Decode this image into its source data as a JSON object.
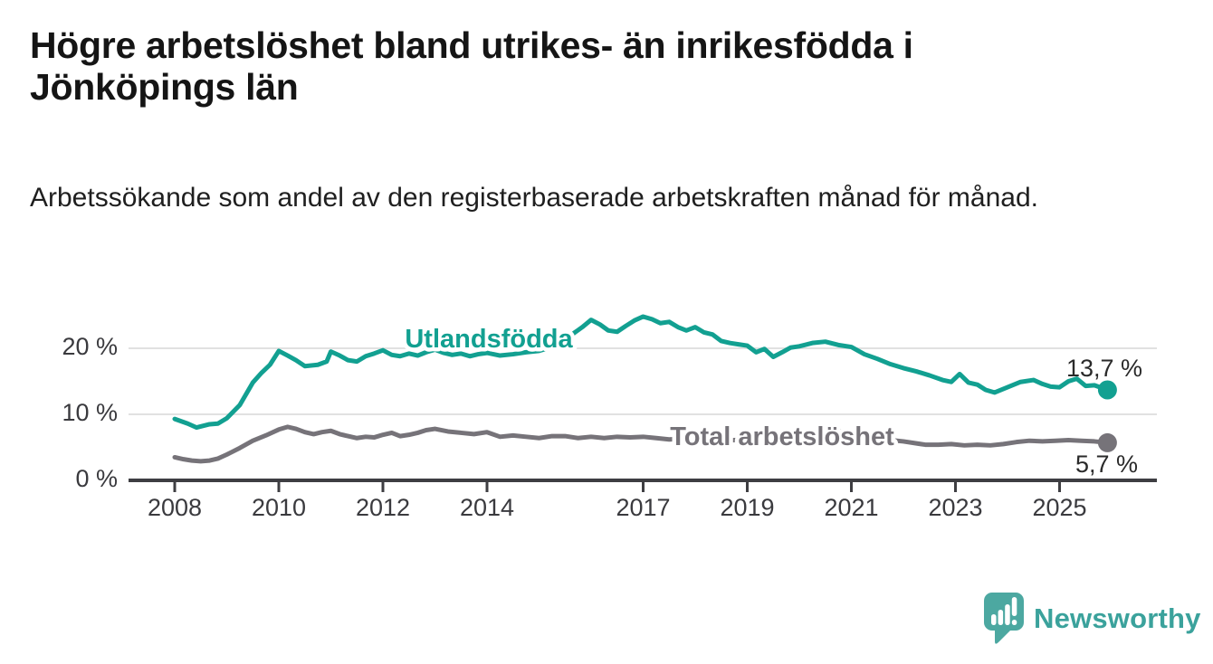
{
  "header": {
    "title": "Högre arbetslöshet bland utrikes- än inrikesfödda i Jönköpings län",
    "subtitle": "Arbetssökande som andel av den registerbaserade arbetskraften månad för månad."
  },
  "chart_data": {
    "type": "line",
    "title": "Högre arbetslöshet bland utrikes- än inrikesfödda i Jönköpings län",
    "subtitle": "Arbetssökande som andel av den registerbaserade arbetskraften månad för månad.",
    "x_unit": "decimal_year",
    "xlim": [
      2007.1,
      2026.9
    ],
    "ylim": [
      0,
      28.9
    ],
    "grid": "horizontal",
    "legend_position": "inline-labels",
    "x_ticks": [
      2008,
      2010,
      2012,
      2014,
      2017,
      2019,
      2021,
      2023,
      2025
    ],
    "y_ticks": [
      {
        "value": 0,
        "label": "0 %"
      },
      {
        "value": 10,
        "label": "10 %"
      },
      {
        "value": 20,
        "label": "20 %"
      }
    ],
    "series": [
      {
        "name": "Utlandsfödda",
        "color": "#12A091",
        "end_label": "13,7 %",
        "end_value": 13.7,
        "x": [
          2008.0,
          2008.25,
          2008.42,
          2008.67,
          2008.83,
          2009.0,
          2009.25,
          2009.5,
          2009.67,
          2009.83,
          2010.0,
          2010.17,
          2010.33,
          2010.5,
          2010.75,
          2010.92,
          2011.0,
          2011.17,
          2011.33,
          2011.5,
          2011.67,
          2011.83,
          2012.0,
          2012.17,
          2012.33,
          2012.5,
          2012.67,
          2012.83,
          2013.0,
          2013.17,
          2013.33,
          2013.5,
          2013.67,
          2013.83,
          2014.0,
          2014.25,
          2014.5,
          2014.75,
          2015.0,
          2015.25,
          2015.5,
          2015.67,
          2015.83,
          2016.0,
          2016.17,
          2016.33,
          2016.5,
          2016.67,
          2016.83,
          2017.0,
          2017.17,
          2017.33,
          2017.5,
          2017.67,
          2017.83,
          2018.0,
          2018.17,
          2018.33,
          2018.5,
          2018.67,
          2018.83,
          2019.0,
          2019.17,
          2019.33,
          2019.5,
          2019.67,
          2019.83,
          2020.0,
          2020.25,
          2020.5,
          2020.75,
          2021.0,
          2021.25,
          2021.5,
          2021.75,
          2022.0,
          2022.25,
          2022.5,
          2022.75,
          2022.92,
          2023.08,
          2023.25,
          2023.42,
          2023.58,
          2023.75,
          2024.0,
          2024.25,
          2024.5,
          2024.67,
          2024.83,
          2025.0,
          2025.17,
          2025.33,
          2025.5,
          2025.67,
          2025.92
        ],
        "values": [
          9.3,
          8.6,
          8.0,
          8.5,
          8.6,
          9.4,
          11.4,
          14.8,
          16.3,
          17.5,
          19.6,
          18.9,
          18.2,
          17.3,
          17.5,
          18.0,
          19.5,
          18.9,
          18.2,
          18.0,
          18.8,
          19.2,
          19.7,
          19.0,
          18.8,
          19.2,
          18.9,
          19.4,
          19.8,
          19.3,
          19.0,
          19.2,
          18.8,
          19.1,
          19.3,
          18.9,
          19.1,
          19.4,
          19.6,
          20.2,
          21.0,
          22.3,
          23.2,
          24.3,
          23.6,
          22.7,
          22.5,
          23.4,
          24.2,
          24.8,
          24.4,
          23.8,
          24.0,
          23.2,
          22.7,
          23.2,
          22.4,
          22.1,
          21.1,
          20.8,
          20.6,
          20.4,
          19.4,
          19.9,
          18.7,
          19.4,
          20.1,
          20.3,
          20.8,
          21.0,
          20.5,
          20.2,
          19.1,
          18.4,
          17.6,
          17.0,
          16.5,
          15.9,
          15.2,
          14.9,
          16.1,
          14.8,
          14.5,
          13.7,
          13.3,
          14.1,
          14.9,
          15.2,
          14.6,
          14.2,
          14.1,
          15.0,
          15.4,
          14.3,
          14.4,
          13.7
        ]
      },
      {
        "name": "Total arbetslöshet",
        "color": "#767379",
        "end_label": "5,7 %",
        "end_value": 5.7,
        "x": [
          2008.0,
          2008.17,
          2008.33,
          2008.5,
          2008.67,
          2008.83,
          2009.0,
          2009.25,
          2009.5,
          2009.75,
          2010.0,
          2010.17,
          2010.33,
          2010.5,
          2010.67,
          2010.83,
          2011.0,
          2011.17,
          2011.33,
          2011.5,
          2011.67,
          2011.83,
          2012.0,
          2012.17,
          2012.33,
          2012.5,
          2012.67,
          2012.83,
          2013.0,
          2013.25,
          2013.5,
          2013.75,
          2014.0,
          2014.25,
          2014.5,
          2014.75,
          2015.0,
          2015.25,
          2015.5,
          2015.75,
          2016.0,
          2016.25,
          2016.5,
          2016.75,
          2017.0,
          2017.25,
          2017.5,
          2017.75,
          2018.0,
          2018.25,
          2018.5,
          2018.75,
          2019.0,
          2019.25,
          2019.5,
          2019.75,
          2020.0,
          2020.25,
          2020.5,
          2020.75,
          2021.0,
          2021.25,
          2021.5,
          2021.75,
          2022.0,
          2022.25,
          2022.42,
          2022.67,
          2022.92,
          2023.17,
          2023.42,
          2023.67,
          2023.92,
          2024.17,
          2024.42,
          2024.67,
          2024.92,
          2025.17,
          2025.42,
          2025.67,
          2025.92
        ],
        "values": [
          3.5,
          3.2,
          3.0,
          2.9,
          3.0,
          3.3,
          3.9,
          4.9,
          6.0,
          6.8,
          7.7,
          8.1,
          7.8,
          7.3,
          7.0,
          7.3,
          7.5,
          7.0,
          6.7,
          6.4,
          6.6,
          6.5,
          6.9,
          7.2,
          6.7,
          6.9,
          7.2,
          7.6,
          7.8,
          7.4,
          7.2,
          7.0,
          7.3,
          6.6,
          6.8,
          6.6,
          6.4,
          6.7,
          6.7,
          6.4,
          6.6,
          6.4,
          6.6,
          6.5,
          6.6,
          6.4,
          6.2,
          6.3,
          6.4,
          6.2,
          6.0,
          6.1,
          6.2,
          6.1,
          6.3,
          6.5,
          6.8,
          7.4,
          7.7,
          7.5,
          7.2,
          6.8,
          6.4,
          6.1,
          5.9,
          5.6,
          5.4,
          5.4,
          5.5,
          5.3,
          5.4,
          5.3,
          5.5,
          5.8,
          6.0,
          5.9,
          6.0,
          6.1,
          6.0,
          5.9,
          5.7
        ]
      }
    ],
    "colors": {
      "axis": "#3E3E42",
      "grid": "#E1E1E1",
      "tick_label": "#3A3A3E",
      "value_label": "#2A2A2A"
    }
  },
  "footer": {
    "brand": "Newsworthy",
    "brand_color": "#3BA29C",
    "logo_color": "#4CA8A1"
  }
}
